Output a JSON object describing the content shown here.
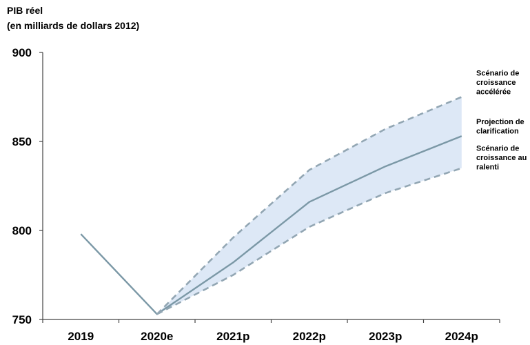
{
  "chart_data": {
    "type": "line",
    "ylabel_lines": [
      "PIB réel",
      "(en milliards de dollars 2012)"
    ],
    "categories": [
      "2019",
      "2020e",
      "2021p",
      "2022p",
      "2023p",
      "2024p"
    ],
    "ylim": [
      750,
      900
    ],
    "yticks": [
      750,
      800,
      850,
      900
    ],
    "grid": false,
    "series": [
      {
        "values": [
          798,
          753,
          782,
          816,
          836,
          853
        ],
        "style": "solid",
        "color": "#7b98a6"
      },
      {
        "values": [
          null,
          753,
          796,
          834,
          857,
          875
        ],
        "style": "dashed",
        "color": "#92a6b3"
      },
      {
        "values": [
          null,
          753,
          775,
          802,
          821,
          835
        ],
        "style": "dashed",
        "color": "#92a6b3"
      }
    ],
    "band_color": "#dde8f6",
    "annotations": [
      {
        "series": 1,
        "lines": [
          "Scénario de",
          "croissance",
          "accélérée"
        ]
      },
      {
        "series": 0,
        "lines": [
          "Projection de",
          "clarification"
        ]
      },
      {
        "series": 2,
        "lines": [
          "Scénario de",
          "croissance au",
          "ralenti"
        ]
      }
    ]
  }
}
